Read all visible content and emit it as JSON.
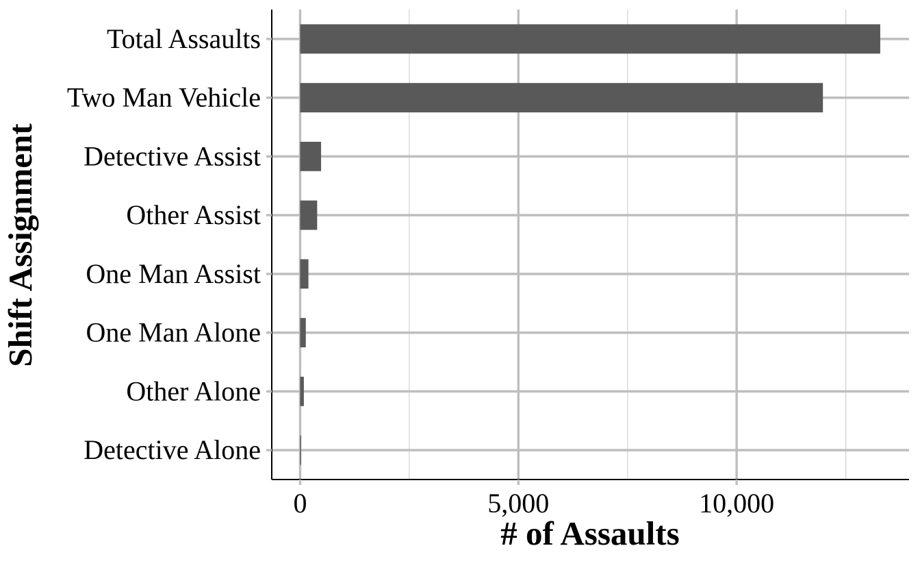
{
  "chart_data": {
    "type": "bar",
    "orientation": "horizontal",
    "title": "",
    "xlabel": "# of Assaults",
    "ylabel": "Shift Assignment",
    "categories": [
      "Total Assaults",
      "Two Man Vehicle",
      "Detective Assist",
      "Other Assist",
      "One Man Assist",
      "One Man Alone",
      "Other Alone",
      "Detective Alone"
    ],
    "values": [
      13290,
      11977,
      480,
      390,
      190,
      130,
      85,
      20
    ],
    "xlim": [
      -650,
      13950
    ],
    "x_ticks": [
      0,
      5000,
      10000
    ],
    "x_tick_labels": [
      "0",
      "5,000",
      "10,000"
    ],
    "grid": true,
    "legend": "none",
    "colors": {
      "bar": "#595959",
      "grid_major": "#bebebe",
      "grid_minor": "#d9d9d9",
      "axis": "#000000",
      "text": "#000000"
    }
  }
}
